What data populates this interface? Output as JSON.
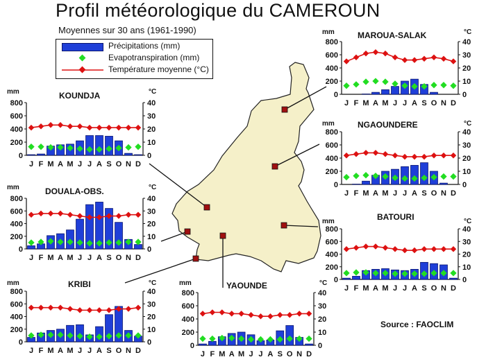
{
  "title": "Profil météorologique du CAMEROUN",
  "subtitle": "Moyennes sur 30 ans  (1961-1990)",
  "source": "Source : FAOCLIM",
  "legend": {
    "precip": "Précipitations (mm)",
    "evapo": "Evapotranspiration (mm)",
    "temp": "Température moyenne (°C)"
  },
  "colors": {
    "map_fill": "#f5f0c9",
    "precip_bar": "#1f3fd8",
    "precip_bar_edge": "#0a1670",
    "evapo_marker": "#22dd22",
    "temp_line": "#dd1111",
    "station_marker": "#a01010"
  },
  "axis_units": {
    "left": "mm",
    "right": "°C"
  },
  "chart_data": [
    {
      "type": "bar+line",
      "title": "KOUNDJA",
      "categories": [
        "J",
        "F",
        "M",
        "A",
        "M",
        "J",
        "J",
        "A",
        "S",
        "O",
        "N",
        "D"
      ],
      "ylim_left": [
        0,
        800
      ],
      "yticks_left": [
        0,
        200,
        400,
        600,
        800
      ],
      "ylim_right": [
        0,
        40
      ],
      "yticks_right": [
        0,
        10,
        20,
        30,
        40
      ],
      "series": [
        {
          "name": "Précipitations (mm)",
          "axis": "left",
          "values": [
            10,
            20,
            140,
            160,
            170,
            220,
            300,
            300,
            290,
            220,
            30,
            10
          ]
        },
        {
          "name": "Evapotranspiration (mm)",
          "axis": "left",
          "values": [
            130,
            130,
            120,
            120,
            110,
            100,
            90,
            90,
            100,
            110,
            120,
            130
          ]
        },
        {
          "name": "Température moyenne (°C)",
          "axis": "right",
          "values": [
            21,
            22,
            23,
            23,
            22,
            22,
            21,
            21,
            21,
            21,
            21,
            21
          ]
        }
      ]
    },
    {
      "type": "bar+line",
      "title": "DOUALA-OBS.",
      "categories": [
        "J",
        "F",
        "M",
        "A",
        "M",
        "J",
        "J",
        "A",
        "S",
        "O",
        "N",
        "D"
      ],
      "ylim_left": [
        0,
        800
      ],
      "yticks_left": [
        0,
        200,
        400,
        600,
        800
      ],
      "ylim_right": [
        0,
        40
      ],
      "yticks_right": [
        0,
        10,
        20,
        30,
        40
      ],
      "series": [
        {
          "name": "Précipitations (mm)",
          "axis": "left",
          "values": [
            50,
            80,
            210,
            240,
            300,
            470,
            700,
            740,
            640,
            420,
            150,
            70
          ]
        },
        {
          "name": "Evapotranspiration (mm)",
          "axis": "left",
          "values": [
            100,
            110,
            120,
            110,
            110,
            100,
            90,
            90,
            100,
            100,
            110,
            110
          ]
        },
        {
          "name": "Température moyenne (°C)",
          "axis": "right",
          "values": [
            27,
            28,
            28,
            28,
            27,
            26,
            25,
            25,
            26,
            26,
            27,
            27
          ]
        }
      ]
    },
    {
      "type": "bar+line",
      "title": "KRIBI",
      "categories": [
        "J",
        "F",
        "M",
        "A",
        "M",
        "J",
        "J",
        "A",
        "S",
        "O",
        "N",
        "D"
      ],
      "ylim_left": [
        0,
        800
      ],
      "yticks_left": [
        0,
        200,
        400,
        600,
        800
      ],
      "ylim_right": [
        0,
        40
      ],
      "yticks_right": [
        0,
        10,
        20,
        30,
        40
      ],
      "series": [
        {
          "name": "Précipitations (mm)",
          "axis": "left",
          "values": [
            70,
            140,
            180,
            200,
            260,
            270,
            110,
            240,
            430,
            560,
            180,
            90
          ]
        },
        {
          "name": "Evapotranspiration (mm)",
          "axis": "left",
          "values": [
            100,
            110,
            110,
            110,
            100,
            90,
            80,
            80,
            90,
            100,
            100,
            100
          ]
        },
        {
          "name": "Température moyenne (°C)",
          "axis": "right",
          "values": [
            27,
            27,
            27,
            27,
            26,
            25,
            25,
            25,
            25,
            26,
            26,
            27
          ]
        }
      ]
    },
    {
      "type": "bar+line",
      "title": "YAOUNDE",
      "categories": [
        "J",
        "F",
        "M",
        "A",
        "M",
        "J",
        "J",
        "A",
        "S",
        "O",
        "N",
        "D"
      ],
      "ylim_left": [
        0,
        800
      ],
      "yticks_left": [
        0,
        200,
        400,
        600,
        800
      ],
      "ylim_right": [
        0,
        40
      ],
      "yticks_right": [
        0,
        10,
        20,
        30,
        40
      ],
      "series": [
        {
          "name": "Précipitations (mm)",
          "axis": "left",
          "values": [
            20,
            60,
            130,
            180,
            200,
            160,
            70,
            80,
            220,
            300,
            120,
            20
          ]
        },
        {
          "name": "Evapotranspiration (mm)",
          "axis": "left",
          "values": [
            100,
            100,
            110,
            110,
            100,
            90,
            90,
            90,
            90,
            100,
            100,
            100
          ]
        },
        {
          "name": "Température moyenne (°C)",
          "axis": "right",
          "values": [
            24,
            25,
            25,
            24,
            24,
            23,
            22,
            22,
            23,
            23,
            24,
            24
          ]
        }
      ]
    },
    {
      "type": "bar+line",
      "title": "MAROUA-SALAK",
      "categories": [
        "J",
        "F",
        "M",
        "A",
        "M",
        "J",
        "J",
        "A",
        "S",
        "O",
        "N",
        "D"
      ],
      "ylim_left": [
        0,
        800
      ],
      "yticks_left": [
        0,
        200,
        400,
        600,
        800
      ],
      "ylim_right": [
        0,
        40
      ],
      "yticks_right": [
        0,
        10,
        20,
        30,
        40
      ],
      "series": [
        {
          "name": "Précipitations (mm)",
          "axis": "left",
          "values": [
            0,
            0,
            5,
            30,
            70,
            120,
            200,
            230,
            150,
            30,
            0,
            0
          ]
        },
        {
          "name": "Evapotranspiration (mm)",
          "axis": "left",
          "values": [
            130,
            150,
            190,
            200,
            190,
            160,
            130,
            120,
            120,
            140,
            140,
            130
          ]
        },
        {
          "name": "Température moyenne (°C)",
          "axis": "right",
          "values": [
            25,
            28,
            31,
            32,
            31,
            28,
            26,
            26,
            27,
            28,
            27,
            25
          ]
        }
      ]
    },
    {
      "type": "bar+line",
      "title": "NGAOUNDERE",
      "categories": [
        "J",
        "F",
        "M",
        "A",
        "M",
        "J",
        "J",
        "A",
        "S",
        "O",
        "N",
        "D"
      ],
      "ylim_left": [
        0,
        800
      ],
      "yticks_left": [
        0,
        200,
        400,
        600,
        800
      ],
      "ylim_right": [
        0,
        40
      ],
      "yticks_right": [
        0,
        10,
        20,
        30,
        40
      ],
      "series": [
        {
          "name": "Précipitations (mm)",
          "axis": "left",
          "values": [
            0,
            5,
            50,
            140,
            200,
            230,
            270,
            290,
            330,
            200,
            20,
            0
          ]
        },
        {
          "name": "Evapotranspiration (mm)",
          "axis": "left",
          "values": [
            110,
            130,
            140,
            130,
            120,
            100,
            90,
            90,
            100,
            110,
            120,
            120
          ]
        },
        {
          "name": "Température moyenne (°C)",
          "axis": "right",
          "values": [
            22,
            23,
            24,
            24,
            23,
            22,
            21,
            21,
            21,
            22,
            22,
            22
          ]
        }
      ]
    },
    {
      "type": "bar+line",
      "title": "BATOURI",
      "categories": [
        "J",
        "F",
        "M",
        "A",
        "M",
        "J",
        "J",
        "A",
        "S",
        "O",
        "N",
        "D"
      ],
      "ylim_left": [
        0,
        800
      ],
      "yticks_left": [
        0,
        200,
        400,
        600,
        800
      ],
      "ylim_right": [
        0,
        40
      ],
      "yticks_right": [
        0,
        10,
        20,
        30,
        40
      ],
      "series": [
        {
          "name": "Précipitations (mm)",
          "axis": "left",
          "values": [
            20,
            50,
            140,
            160,
            170,
            150,
            140,
            160,
            270,
            250,
            230,
            20
          ]
        },
        {
          "name": "Evapotranspiration (mm)",
          "axis": "left",
          "values": [
            100,
            110,
            110,
            100,
            100,
            90,
            90,
            90,
            90,
            100,
            100,
            100
          ]
        },
        {
          "name": "Température moyenne (°C)",
          "axis": "right",
          "values": [
            24,
            25,
            26,
            26,
            25,
            24,
            23,
            23,
            24,
            24,
            24,
            24
          ]
        }
      ]
    }
  ]
}
